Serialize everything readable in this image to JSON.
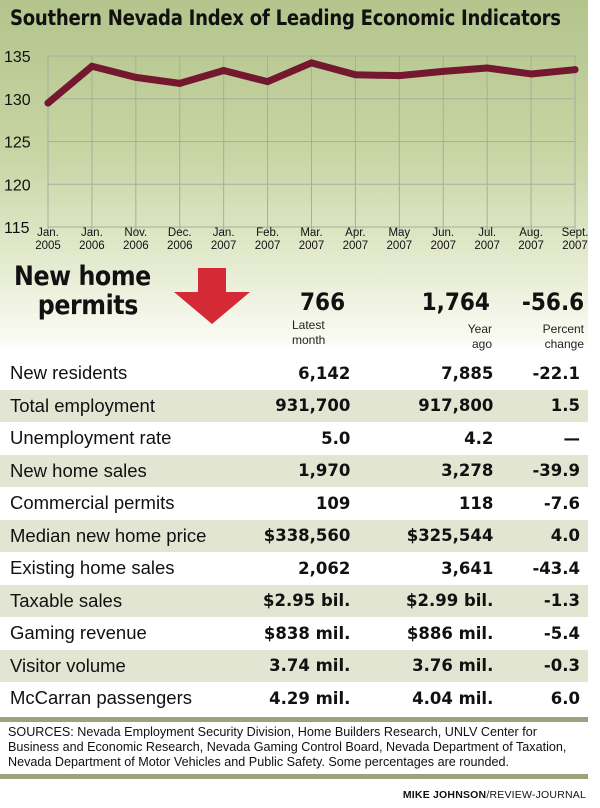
{
  "chart_data": {
    "type": "line",
    "title": "Southern Nevada Index of Leading Economic Indicators",
    "xlabel": "",
    "ylabel": "",
    "ylim": [
      115,
      135
    ],
    "yticks": [
      "135",
      "130",
      "125",
      "120",
      "115"
    ],
    "ytick_values": [
      135,
      130,
      125,
      120,
      115
    ],
    "grid": true,
    "categories": [
      {
        "month": "Jan.",
        "year": "2005"
      },
      {
        "month": "Jan.",
        "year": "2006"
      },
      {
        "month": "Nov.",
        "year": "2006"
      },
      {
        "month": "Dec.",
        "year": "2006"
      },
      {
        "month": "Jan.",
        "year": "2007"
      },
      {
        "month": "Feb.",
        "year": "2007"
      },
      {
        "month": "Mar.",
        "year": "2007"
      },
      {
        "month": "Apr.",
        "year": "2007"
      },
      {
        "month": "May",
        "year": "2007"
      },
      {
        "month": "Jun.",
        "year": "2007"
      },
      {
        "month": "Jul.",
        "year": "2007"
      },
      {
        "month": "Aug.",
        "year": "2007"
      },
      {
        "month": "Sept.",
        "year": "2007"
      }
    ],
    "series": [
      {
        "name": "Index",
        "color": "#74182f",
        "values": [
          129.5,
          133.8,
          132.5,
          131.8,
          133.3,
          132.0,
          134.2,
          132.8,
          132.7,
          133.2,
          133.6,
          132.9,
          133.4
        ]
      }
    ]
  },
  "headline": {
    "line1": "New home",
    "line2": "permits",
    "direction": "down",
    "arrow_color": "#d42a35",
    "latest": "766",
    "year_ago": "1,764",
    "pct_change": "-56.6",
    "latest_label_1": "Latest",
    "latest_label_2": "month",
    "year_ago_label_1": "Year",
    "year_ago_label_2": "ago",
    "pct_label_1": "Percent",
    "pct_label_2": "change"
  },
  "rows": [
    {
      "label": "New residents",
      "latest": "6,142",
      "year_ago": "7,885",
      "change": "-22.1"
    },
    {
      "label": "Total employment",
      "latest": "931,700",
      "year_ago": "917,800",
      "change": "1.5"
    },
    {
      "label": "Unemployment rate",
      "latest": "5.0",
      "year_ago": "4.2",
      "change": "—"
    },
    {
      "label": "New home sales",
      "latest": "1,970",
      "year_ago": "3,278",
      "change": "-39.9"
    },
    {
      "label": "Commercial permits",
      "latest": "109",
      "year_ago": "118",
      "change": "-7.6"
    },
    {
      "label": "Median new home price",
      "latest": "$338,560",
      "year_ago": "$325,544",
      "change": "4.0"
    },
    {
      "label": "Existing home sales",
      "latest": "2,062",
      "year_ago": "3,641",
      "change": "-43.4"
    },
    {
      "label": "Taxable sales",
      "latest": "$2.95 bil.",
      "year_ago": "$2.99 bil.",
      "change": "-1.3"
    },
    {
      "label": "Gaming revenue",
      "latest": "$838 mil.",
      "year_ago": "$886 mil.",
      "change": "-5.4"
    },
    {
      "label": "Visitor volume",
      "latest": "3.74 mil.",
      "year_ago": "3.76 mil.",
      "change": "-0.3"
    },
    {
      "label": "McCarran passengers",
      "latest": "4.29 mil.",
      "year_ago": "4.04 mil.",
      "change": "6.0"
    }
  ],
  "footer": {
    "sources": "SOURCES: Nevada Employment Security Division, Home Builders Research, UNLV Center for Business and Economic Research, Nevada Gaming Control Board, Nevada Department of Taxation, Nevada Department of Motor Vehicles and Public Safety. Some percentages are rounded.",
    "credit_name": "MIKE JOHNSON",
    "credit_org": "/REVIEW-JOURNAL"
  }
}
